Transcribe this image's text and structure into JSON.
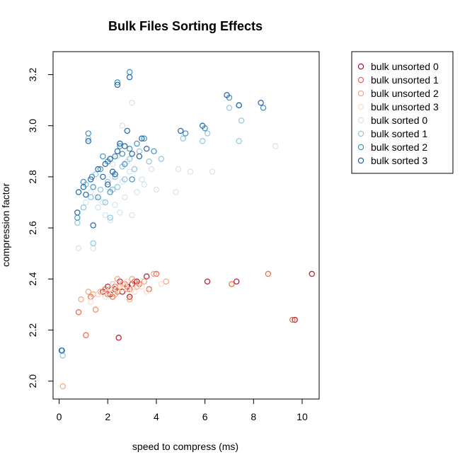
{
  "chart_data": {
    "type": "scatter",
    "title": "Bulk Files Sorting Effects",
    "xlabel": "speed to compress (ms)",
    "ylabel": "compression factor",
    "xlim": [
      -0.25,
      10.7
    ],
    "ylim": [
      1.93,
      3.29
    ],
    "xticks": [
      0,
      2,
      4,
      6,
      8,
      10
    ],
    "yticks": [
      2.0,
      2.2,
      2.4,
      2.6,
      2.8,
      3.0,
      3.2
    ],
    "ytick_labels": [
      "2.0",
      "2.2",
      "2.4",
      "2.6",
      "2.8",
      "3.0",
      "3.2"
    ],
    "grid": false,
    "legend_position": "outside-right",
    "series": [
      {
        "name": "bulk unsorted 0",
        "color": "#b2182b",
        "points": [
          [
            2.0,
            2.37
          ],
          [
            2.2,
            2.38
          ],
          [
            2.5,
            2.39
          ],
          [
            2.8,
            2.37
          ],
          [
            3.0,
            2.38
          ],
          [
            2.3,
            2.36
          ],
          [
            2.6,
            2.35
          ],
          [
            3.2,
            2.39
          ],
          [
            1.8,
            2.35
          ],
          [
            3.6,
            2.41
          ],
          [
            2.9,
            2.33
          ],
          [
            2.1,
            2.34
          ],
          [
            6.1,
            2.39
          ],
          [
            7.3,
            2.39
          ],
          [
            10.4,
            2.42
          ],
          [
            9.7,
            2.24
          ],
          [
            2.45,
            2.17
          ],
          [
            1.5,
            2.28
          ]
        ]
      },
      {
        "name": "bulk unsorted 1",
        "color": "#ef6548",
        "points": [
          [
            1.9,
            2.36
          ],
          [
            2.3,
            2.37
          ],
          [
            2.7,
            2.38
          ],
          [
            3.1,
            2.39
          ],
          [
            2.0,
            2.34
          ],
          [
            2.4,
            2.35
          ],
          [
            2.9,
            2.36
          ],
          [
            3.3,
            2.38
          ],
          [
            3.7,
            2.36
          ],
          [
            4.0,
            2.42
          ],
          [
            1.6,
            2.34
          ],
          [
            1.3,
            2.33
          ],
          [
            2.2,
            2.33
          ],
          [
            7.1,
            2.38
          ],
          [
            8.6,
            2.42
          ],
          [
            9.6,
            2.24
          ],
          [
            0.8,
            2.27
          ],
          [
            1.1,
            2.18
          ]
        ]
      },
      {
        "name": "bulk unsorted 2",
        "color": "#f4a582",
        "points": [
          [
            1.7,
            2.35
          ],
          [
            2.1,
            2.36
          ],
          [
            2.5,
            2.37
          ],
          [
            2.8,
            2.36
          ],
          [
            3.2,
            2.37
          ],
          [
            3.5,
            2.39
          ],
          [
            1.4,
            2.34
          ],
          [
            1.2,
            2.35
          ],
          [
            2.6,
            2.38
          ],
          [
            2.3,
            2.34
          ],
          [
            4.4,
            2.39
          ],
          [
            3.9,
            2.42
          ],
          [
            0.9,
            2.32
          ],
          [
            0.15,
            1.98
          ],
          [
            2.4,
            2.4
          ],
          [
            3.0,
            2.4
          ],
          [
            1.5,
            2.28
          ],
          [
            2.9,
            2.32
          ]
        ]
      },
      {
        "name": "bulk unsorted 3",
        "color": "#fddbc7",
        "points": [
          [
            1.6,
            2.34
          ],
          [
            2.0,
            2.35
          ],
          [
            2.4,
            2.36
          ],
          [
            2.7,
            2.37
          ],
          [
            3.1,
            2.35
          ],
          [
            3.4,
            2.37
          ],
          [
            1.9,
            2.33
          ],
          [
            2.2,
            2.38
          ],
          [
            2.6,
            2.36
          ],
          [
            3.0,
            2.36
          ],
          [
            3.6,
            2.35
          ],
          [
            1.3,
            2.31
          ],
          [
            4.2,
            2.38
          ],
          [
            2.8,
            2.39
          ]
        ]
      },
      {
        "name": "bulk sorted 0",
        "color": "#d1e5f0",
        "points": [
          [
            0.8,
            2.52
          ],
          [
            1.4,
            2.52
          ],
          [
            2.1,
            2.63
          ],
          [
            2.5,
            2.66
          ],
          [
            3.0,
            2.65
          ],
          [
            1.8,
            2.7
          ],
          [
            2.3,
            2.69
          ],
          [
            2.7,
            2.72
          ],
          [
            3.2,
            2.74
          ],
          [
            2.0,
            2.76
          ],
          [
            2.6,
            2.78
          ],
          [
            3.5,
            2.77
          ],
          [
            1.1,
            2.7
          ],
          [
            1.6,
            2.68
          ],
          [
            2.2,
            2.8
          ],
          [
            2.9,
            2.82
          ],
          [
            1.3,
            2.74
          ],
          [
            3.8,
            2.83
          ],
          [
            4.0,
            2.75
          ],
          [
            4.8,
            2.74
          ],
          [
            5.4,
            2.82
          ],
          [
            6.3,
            2.82
          ],
          [
            8.9,
            2.92
          ],
          [
            2.6,
            3.0
          ],
          [
            3.0,
            3.09
          ],
          [
            2.2,
            2.85
          ],
          [
            1.5,
            2.72
          ],
          [
            2.4,
            2.88
          ],
          [
            3.4,
            2.79
          ],
          [
            1.9,
            2.65
          ],
          [
            2.8,
            2.86
          ],
          [
            4.9,
            2.83
          ]
        ]
      },
      {
        "name": "bulk sorted 1",
        "color": "#92c5de",
        "points": [
          [
            0.75,
            2.62
          ],
          [
            1.0,
            2.68
          ],
          [
            1.3,
            2.72
          ],
          [
            1.7,
            2.75
          ],
          [
            2.0,
            2.78
          ],
          [
            2.3,
            2.8
          ],
          [
            1.5,
            2.81
          ],
          [
            2.6,
            2.84
          ],
          [
            2.9,
            2.87
          ],
          [
            3.3,
            2.9
          ],
          [
            1.2,
            2.95
          ],
          [
            2.5,
            2.93
          ],
          [
            0.15,
            2.1
          ],
          [
            1.4,
            2.54
          ],
          [
            2.1,
            2.64
          ],
          [
            3.7,
            2.86
          ],
          [
            4.2,
            2.87
          ],
          [
            5.1,
            2.95
          ],
          [
            5.9,
            2.94
          ],
          [
            6.1,
            2.97
          ],
          [
            7.0,
            3.07
          ],
          [
            7.5,
            3.02
          ],
          [
            7.4,
            2.94
          ],
          [
            8.4,
            3.07
          ],
          [
            2.2,
            2.75
          ],
          [
            1.9,
            2.7
          ],
          [
            2.7,
            2.79
          ],
          [
            1.1,
            2.77
          ],
          [
            3.1,
            2.83
          ],
          [
            2.4,
            2.76
          ]
        ]
      },
      {
        "name": "bulk sorted 2",
        "color": "#4393c3",
        "points": [
          [
            0.75,
            2.64
          ],
          [
            1.0,
            2.78
          ],
          [
            1.35,
            2.8
          ],
          [
            1.7,
            2.83
          ],
          [
            2.0,
            2.86
          ],
          [
            2.3,
            2.88
          ],
          [
            2.6,
            2.89
          ],
          [
            2.9,
            2.91
          ],
          [
            3.2,
            2.93
          ],
          [
            3.5,
            2.95
          ],
          [
            1.2,
            2.97
          ],
          [
            2.5,
            2.92
          ],
          [
            2.2,
            2.82
          ],
          [
            1.8,
            2.88
          ],
          [
            2.7,
            2.85
          ],
          [
            3.0,
            2.79
          ],
          [
            1.4,
            2.76
          ],
          [
            0.12,
            2.12
          ],
          [
            2.9,
            3.21
          ],
          [
            2.4,
            3.17
          ],
          [
            5.2,
            2.97
          ],
          [
            6.0,
            2.99
          ],
          [
            7.0,
            3.11
          ],
          [
            7.4,
            3.08
          ],
          [
            8.4,
            3.07
          ],
          [
            3.9,
            2.9
          ],
          [
            1.6,
            2.72
          ],
          [
            2.1,
            2.74
          ]
        ]
      },
      {
        "name": "bulk sorted 3",
        "color": "#2166ac",
        "points": [
          [
            0.75,
            2.66
          ],
          [
            0.8,
            2.74
          ],
          [
            1.0,
            2.76
          ],
          [
            1.3,
            2.79
          ],
          [
            1.6,
            2.83
          ],
          [
            1.9,
            2.85
          ],
          [
            2.1,
            2.87
          ],
          [
            2.4,
            2.9
          ],
          [
            2.7,
            2.92
          ],
          [
            3.0,
            2.89
          ],
          [
            3.3,
            2.88
          ],
          [
            3.6,
            2.91
          ],
          [
            1.2,
            2.94
          ],
          [
            1.4,
            2.61
          ],
          [
            2.0,
            2.77
          ],
          [
            2.2,
            2.82
          ],
          [
            2.5,
            2.93
          ],
          [
            1.8,
            2.8
          ],
          [
            2.8,
            2.98
          ],
          [
            3.4,
            2.95
          ],
          [
            0.1,
            2.12
          ],
          [
            2.4,
            3.16
          ],
          [
            2.9,
            3.19
          ],
          [
            5.0,
            2.98
          ],
          [
            5.9,
            3.0
          ],
          [
            6.9,
            3.12
          ],
          [
            7.4,
            3.08
          ],
          [
            8.3,
            3.09
          ],
          [
            2.3,
            2.81
          ],
          [
            1.1,
            2.73
          ]
        ]
      }
    ]
  }
}
